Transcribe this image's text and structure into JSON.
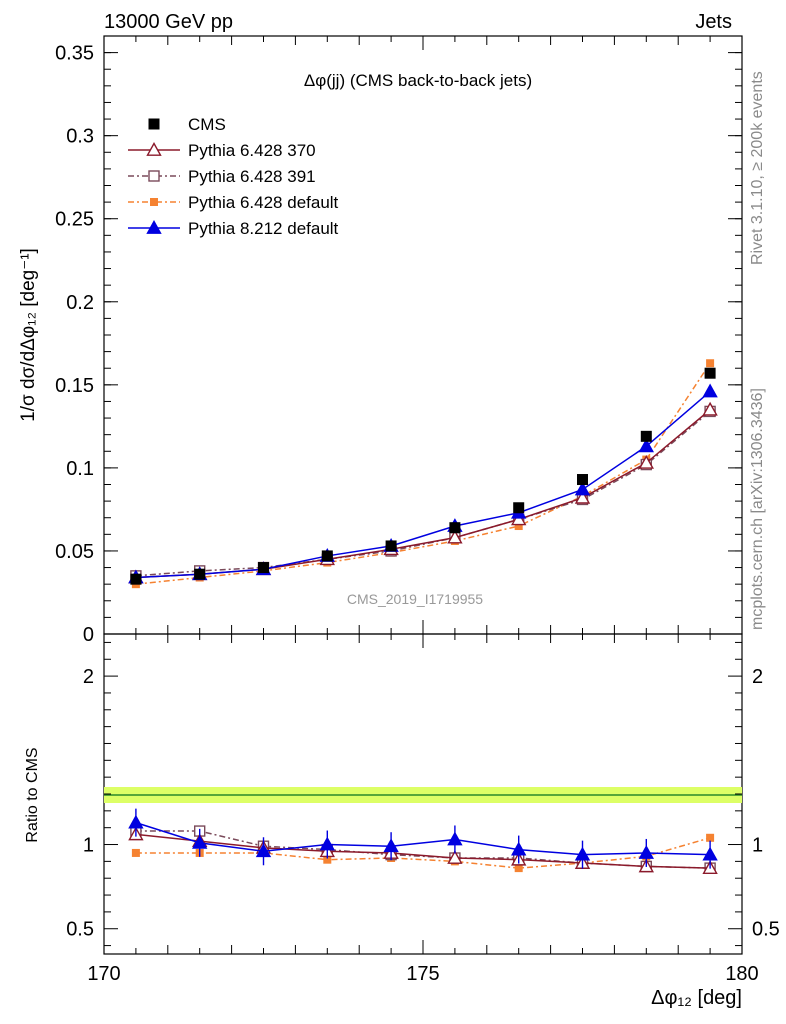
{
  "header": {
    "left": "13000 GeV pp",
    "right": "Jets"
  },
  "side_labels": {
    "rivet": "Rivet 3.1.10, ≥ 200k events",
    "mcplots": "mcplots.cern.ch [arXiv:1306.3436]"
  },
  "watermark": "CMS_2019_I1719955",
  "colors": {
    "cms": "#000000",
    "p370": "#8b1a2b",
    "p391": "#7a4a5a",
    "p6def": "#f58231",
    "p8def": "#0000e0",
    "band": "#ddff66"
  },
  "chart_data": [
    {
      "type": "scatter",
      "title": "Δφ(jj) (CMS back-to-back jets)",
      "ylabel": "1/σ dσ/dΔφ₁₂ [deg⁻¹]",
      "xlabel": "Δφ₁₂ [deg]",
      "xlim": [
        170,
        180
      ],
      "ylim": [
        0,
        0.36
      ],
      "x": [
        170.5,
        171.5,
        172.5,
        173.5,
        174.5,
        175.5,
        176.5,
        177.5,
        178.5,
        179.5
      ],
      "yticks": [
        "0",
        "0.05",
        "0.1",
        "0.15",
        "0.2",
        "0.25",
        "0.3",
        "0.35"
      ],
      "xticks": [
        "170",
        "175",
        "180"
      ],
      "series": [
        {
          "name": "CMS",
          "key": "cms",
          "values": [
            0.033,
            0.036,
            0.04,
            0.047,
            0.053,
            0.064,
            0.076,
            0.093,
            0.119,
            0.157
          ]
        },
        {
          "name": "Pythia 6.428 370",
          "key": "p370",
          "values": [
            0.034,
            0.036,
            0.039,
            0.045,
            0.051,
            0.058,
            0.069,
            0.082,
            0.103,
            0.135
          ]
        },
        {
          "name": "Pythia 6.428 391",
          "key": "p391",
          "values": [
            0.035,
            0.038,
            0.04,
            0.045,
            0.05,
            0.058,
            0.069,
            0.081,
            0.102,
            0.134
          ]
        },
        {
          "name": "Pythia 6.428 default",
          "key": "p6def",
          "values": [
            0.03,
            0.034,
            0.038,
            0.043,
            0.049,
            0.056,
            0.065,
            0.083,
            0.105,
            0.163
          ]
        },
        {
          "name": "Pythia 8.212 default",
          "key": "p8def",
          "values": [
            0.034,
            0.036,
            0.039,
            0.047,
            0.053,
            0.065,
            0.073,
            0.087,
            0.113,
            0.146
          ]
        }
      ]
    },
    {
      "type": "line",
      "ylabel": "Ratio to CMS",
      "xlim": [
        170,
        180
      ],
      "ylim": [
        0.35,
        2.25
      ],
      "x": [
        170.5,
        171.5,
        172.5,
        173.5,
        174.5,
        175.5,
        176.5,
        177.5,
        178.5,
        179.5
      ],
      "yticks": [
        "0.5",
        "1",
        "2"
      ],
      "series": [
        {
          "name": "Pythia 6.428 370",
          "key": "p370",
          "values": [
            1.06,
            1.02,
            0.98,
            0.96,
            0.95,
            0.92,
            0.91,
            0.89,
            0.87,
            0.86
          ]
        },
        {
          "name": "Pythia 6.428 391",
          "key": "p391",
          "values": [
            1.08,
            1.08,
            0.99,
            0.97,
            0.94,
            0.92,
            0.92,
            0.89,
            0.87,
            0.86
          ]
        },
        {
          "name": "Pythia 6.428 default",
          "key": "p6def",
          "values": [
            0.95,
            0.95,
            0.95,
            0.91,
            0.92,
            0.9,
            0.86,
            0.89,
            0.93,
            1.04
          ]
        },
        {
          "name": "Pythia 8.212 default",
          "key": "p8def",
          "values": [
            1.13,
            1.01,
            0.96,
            1.0,
            0.99,
            1.03,
            0.97,
            0.94,
            0.95,
            0.94
          ]
        }
      ]
    }
  ]
}
